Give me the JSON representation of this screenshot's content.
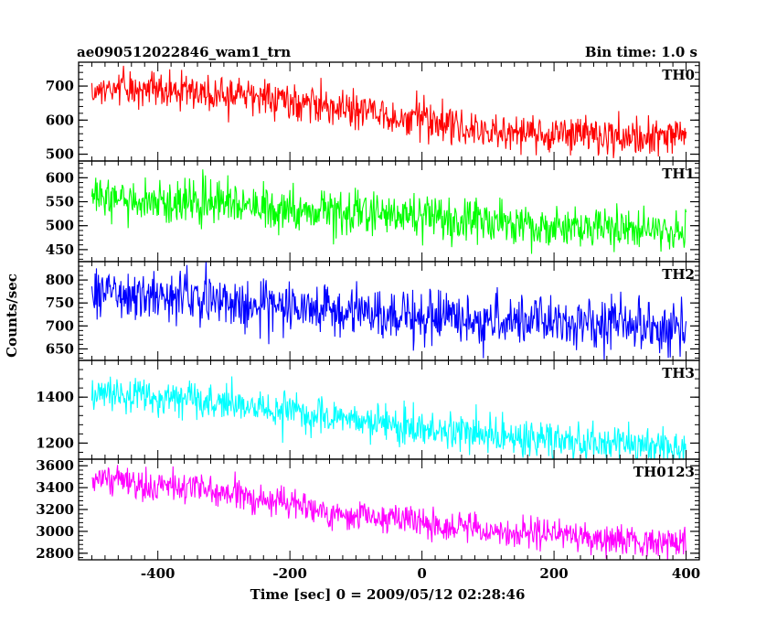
{
  "chart_data": {
    "type": "line",
    "title": "ae090512022846_wam1_trn",
    "bin_label": "Bin time: 1.0 s",
    "xlabel": "Time [sec] 0 = 2009/05/12 02:28:46",
    "ylabel": "Counts/sec",
    "xlim": [
      -520,
      420
    ],
    "x_ticks": [
      -400,
      -200,
      0,
      200,
      400
    ],
    "x_range_data": [
      -500,
      400
    ],
    "bin_time": 1.0,
    "panels": [
      {
        "name": "TH0",
        "color": "#ff0000",
        "ylim": [
          480,
          770
        ],
        "y_ticks": [
          500,
          600,
          700
        ],
        "trend": [
          [
            -500,
            700
          ],
          [
            -300,
            680
          ],
          [
            -100,
            630
          ],
          [
            0,
            600
          ],
          [
            100,
            565
          ],
          [
            400,
            545
          ]
        ],
        "noise": 28
      },
      {
        "name": "TH1",
        "color": "#00ff00",
        "ylim": [
          425,
          635
        ],
        "y_ticks": [
          450,
          500,
          550,
          600
        ],
        "trend": [
          [
            -500,
            560
          ],
          [
            -300,
            545
          ],
          [
            -100,
            525
          ],
          [
            100,
            505
          ],
          [
            400,
            490
          ]
        ],
        "noise": 22
      },
      {
        "name": "TH2",
        "color": "#0000ff",
        "ylim": [
          625,
          840
        ],
        "y_ticks": [
          650,
          700,
          750,
          800
        ],
        "trend": [
          [
            -500,
            775
          ],
          [
            -300,
            755
          ],
          [
            -100,
            730
          ],
          [
            100,
            712
          ],
          [
            400,
            702
          ]
        ],
        "noise": 28
      },
      {
        "name": "TH3",
        "color": "#00ffff",
        "ylim": [
          1130,
          1560
        ],
        "y_ticks": [
          1200,
          1400
        ],
        "trend": [
          [
            -500,
            1430
          ],
          [
            -300,
            1370
          ],
          [
            -100,
            1300
          ],
          [
            100,
            1240
          ],
          [
            400,
            1175
          ]
        ],
        "noise": 40
      },
      {
        "name": "TH0123",
        "color": "#ff00ff",
        "ylim": [
          2740,
          3660
        ],
        "y_ticks": [
          2800,
          3000,
          3200,
          3400,
          3600
        ],
        "trend": [
          [
            -500,
            3480
          ],
          [
            -300,
            3360
          ],
          [
            -100,
            3150
          ],
          [
            100,
            3010
          ],
          [
            400,
            2880
          ]
        ],
        "noise": 70
      }
    ]
  }
}
